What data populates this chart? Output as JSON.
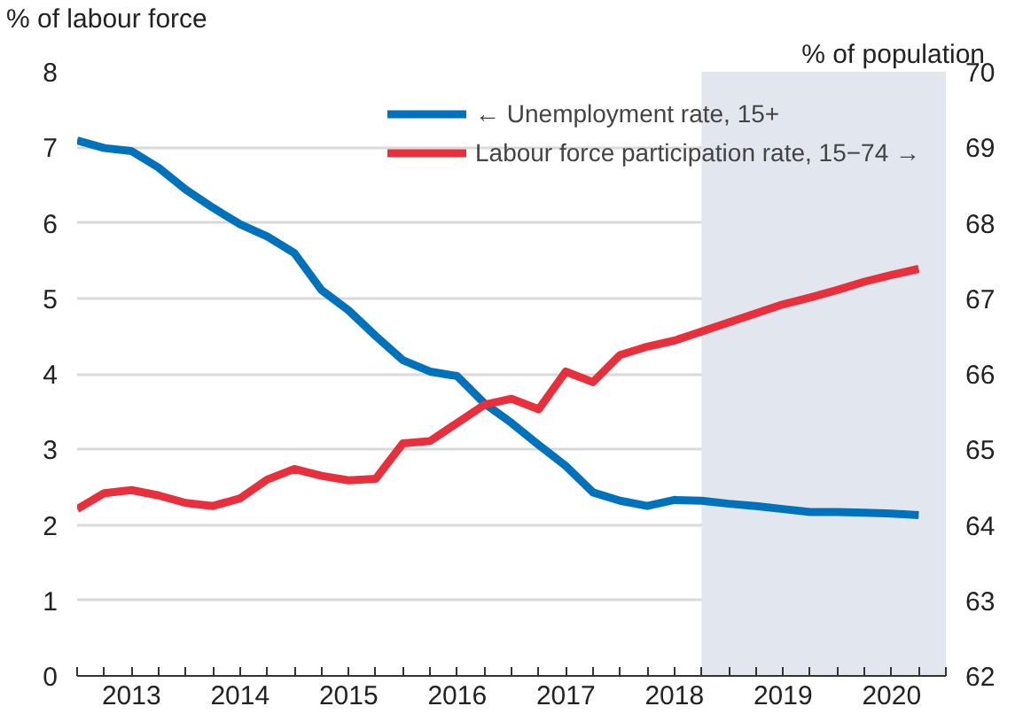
{
  "chart_data": {
    "type": "line",
    "ylabel": "% of labour force",
    "y2label": "% of population",
    "x": [
      2013.0,
      2013.25,
      2013.5,
      2013.75,
      2014.0,
      2014.25,
      2014.5,
      2014.75,
      2015.0,
      2015.25,
      2015.5,
      2015.75,
      2016.0,
      2016.25,
      2016.5,
      2016.75,
      2017.0,
      2017.25,
      2017.5,
      2017.75,
      2018.0,
      2018.25,
      2018.5,
      2018.75,
      2019.0,
      2019.25,
      2019.5,
      2019.75,
      2020.0,
      2020.25,
      2020.5,
      2020.75
    ],
    "series": [
      {
        "name": "← Unemployment rate, 15+",
        "color": "#0072bc",
        "values": [
          7.09,
          6.99,
          6.95,
          6.73,
          6.44,
          6.2,
          5.98,
          5.82,
          5.6,
          5.11,
          4.84,
          4.5,
          4.18,
          4.03,
          3.97,
          3.61,
          3.35,
          3.06,
          2.78,
          2.43,
          2.32,
          2.25,
          2.33,
          2.32,
          2.28,
          2.25,
          2.21,
          2.17,
          2.17,
          2.16,
          2.15,
          2.13
        ]
      },
      {
        "name": "Labour force participation rate, 15−74 →",
        "color": "#e8303d",
        "axis": "y2",
        "values": [
          64.21,
          64.42,
          64.46,
          64.39,
          64.29,
          64.25,
          64.35,
          64.6,
          64.74,
          64.65,
          64.59,
          64.61,
          65.08,
          65.11,
          65.35,
          65.59,
          65.67,
          65.53,
          66.03,
          65.89,
          66.25,
          66.36,
          66.44,
          66.56,
          66.68,
          66.8,
          66.92,
          67.01,
          67.11,
          67.22,
          67.31,
          67.39
        ]
      }
    ],
    "xlim": [
      2013,
      2021
    ],
    "xticks": [
      {
        "value": 2013,
        "label": null
      },
      {
        "value": 2013.25,
        "label": null
      },
      {
        "value": 2013.5,
        "label": "2013"
      },
      {
        "value": 2013.75,
        "label": null
      },
      {
        "value": 2014,
        "label": null
      },
      {
        "value": 2014.25,
        "label": null
      },
      {
        "value": 2014.5,
        "label": "2014"
      },
      {
        "value": 2014.75,
        "label": null
      },
      {
        "value": 2015,
        "label": null
      },
      {
        "value": 2015.25,
        "label": null
      },
      {
        "value": 2015.5,
        "label": "2015"
      },
      {
        "value": 2015.75,
        "label": null
      },
      {
        "value": 2016,
        "label": null
      },
      {
        "value": 2016.25,
        "label": null
      },
      {
        "value": 2016.5,
        "label": "2016"
      },
      {
        "value": 2016.75,
        "label": null
      },
      {
        "value": 2017,
        "label": null
      },
      {
        "value": 2017.25,
        "label": null
      },
      {
        "value": 2017.5,
        "label": "2017"
      },
      {
        "value": 2017.75,
        "label": null
      },
      {
        "value": 2018,
        "label": null
      },
      {
        "value": 2018.25,
        "label": null
      },
      {
        "value": 2018.5,
        "label": "2018"
      },
      {
        "value": 2018.75,
        "label": null
      },
      {
        "value": 2019,
        "label": null
      },
      {
        "value": 2019.25,
        "label": null
      },
      {
        "value": 2019.5,
        "label": "2019"
      },
      {
        "value": 2019.75,
        "label": null
      },
      {
        "value": 2020,
        "label": null
      },
      {
        "value": 2020.25,
        "label": null
      },
      {
        "value": 2020.5,
        "label": "2020"
      },
      {
        "value": 2020.75,
        "label": null
      },
      {
        "value": 2021,
        "label": null
      }
    ],
    "ylim": [
      0,
      8
    ],
    "yticks": [
      0,
      1,
      2,
      3,
      4,
      5,
      6,
      7,
      8
    ],
    "y2lim": [
      62,
      70
    ],
    "y2ticks": [
      62,
      63,
      64,
      65,
      66,
      67,
      68,
      69,
      70
    ],
    "bands": [
      {
        "axis": "x",
        "from": 2018.75,
        "to": 2021,
        "color": "#e1e6ef"
      }
    ],
    "grid": "y",
    "legend": "top right",
    "marker": "none",
    "line_style": "solid"
  }
}
